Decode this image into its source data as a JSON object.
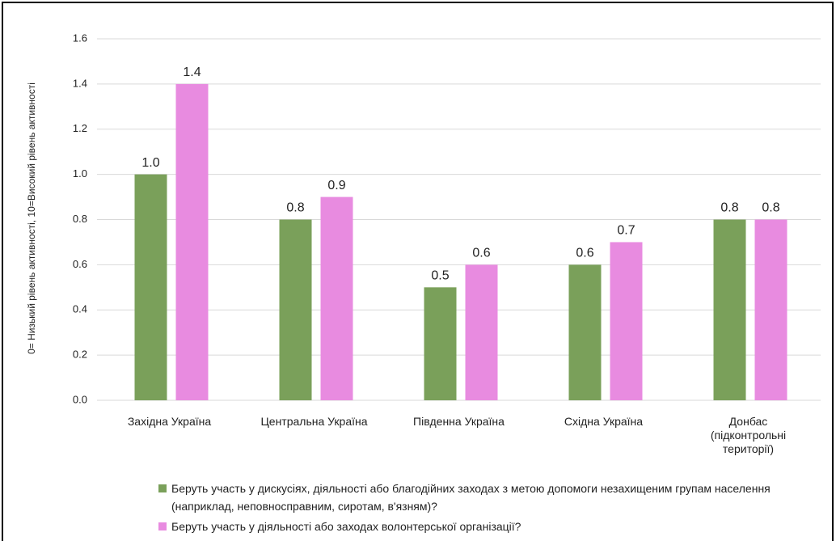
{
  "chart_data": {
    "type": "bar",
    "y_axis_label": "0= Низький рівень активності, 10=Високий рівень активності",
    "categories": [
      "Західна Україна",
      "Центральна Україна",
      "Південна Україна",
      "Східна Україна",
      "Донбас\n(підконтрольні\nтериторії)"
    ],
    "series": [
      {
        "name": "Беруть участь у дискусіях, діяльності або благодійних заходах з метою допомоги незахищеним групам населення (наприклад, неповносправним, сиротам, в'язням)?",
        "color": "#7aa05a",
        "values": [
          1,
          0.8,
          0.5,
          0.6,
          0.8
        ],
        "value_labels": [
          "1.0",
          "0.8",
          "0.5",
          "0.6",
          "0.8"
        ]
      },
      {
        "name": "Беруть участь у діяльності або заходах волонтерської організації?",
        "color": "#e88be0",
        "values": [
          1.4,
          0.9,
          0.6,
          0.7,
          0.8
        ],
        "value_labels": [
          "1.4",
          "0.9",
          "0.6",
          "0.7",
          "0.8"
        ]
      }
    ],
    "ylim": [
      0,
      1.6
    ],
    "yticks": [
      {
        "value": 0,
        "label": "0.0"
      },
      0.2,
      0.4,
      0.6,
      0.8,
      {
        "value": 1,
        "label": "1.0"
      },
      1.2,
      1.4,
      1.6
    ],
    "grid": true,
    "legend": "bottom"
  }
}
